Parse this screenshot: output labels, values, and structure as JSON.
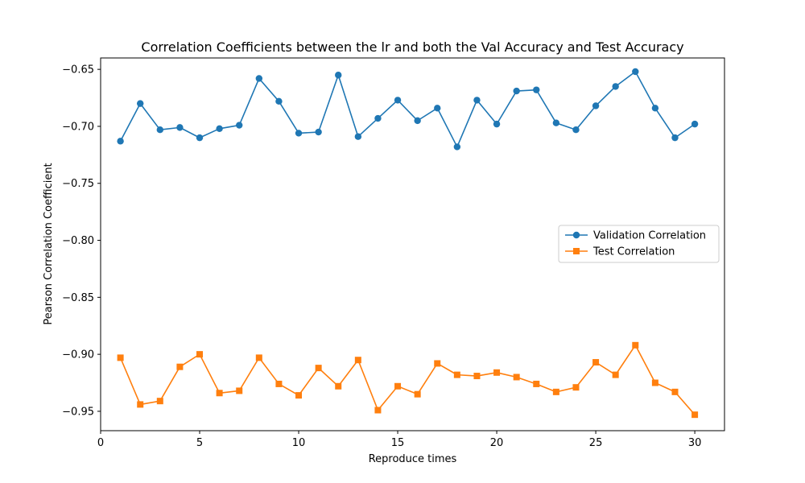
{
  "chart_data": {
    "type": "line",
    "title": "Correlation Coefficients between the lr and both the Val Accuracy and Test Accuracy",
    "xlabel": "Reproduce times",
    "ylabel": "Pearson Correlation Coefficient",
    "xlim": [
      0,
      31.5
    ],
    "ylim": [
      -0.967,
      -0.64
    ],
    "xticks": [
      0,
      5,
      10,
      15,
      20,
      25,
      30
    ],
    "yticks": [
      -0.65,
      -0.7,
      -0.75,
      -0.8,
      -0.85,
      -0.9,
      -0.95
    ],
    "ytick_labels": [
      "−0.65",
      "−0.70",
      "−0.75",
      "−0.80",
      "−0.85",
      "−0.90",
      "−0.95"
    ],
    "grid": false,
    "legend_position": "center-right",
    "x": [
      1,
      2,
      3,
      4,
      5,
      6,
      7,
      8,
      9,
      10,
      11,
      12,
      13,
      14,
      15,
      16,
      17,
      18,
      19,
      20,
      21,
      22,
      23,
      24,
      25,
      26,
      27,
      28,
      29,
      30
    ],
    "series": [
      {
        "name": "Validation Correlation",
        "color": "#1f77b4",
        "marker": "circle",
        "values": [
          -0.713,
          -0.68,
          -0.703,
          -0.701,
          -0.71,
          -0.702,
          -0.699,
          -0.658,
          -0.678,
          -0.706,
          -0.705,
          -0.655,
          -0.709,
          -0.693,
          -0.677,
          -0.695,
          -0.684,
          -0.718,
          -0.677,
          -0.698,
          -0.669,
          -0.668,
          -0.697,
          -0.703,
          -0.682,
          -0.665,
          -0.652,
          -0.684,
          -0.71,
          -0.698
        ]
      },
      {
        "name": "Test Correlation",
        "color": "#ff7f0e",
        "marker": "square",
        "values": [
          -0.903,
          -0.944,
          -0.941,
          -0.911,
          -0.9,
          -0.934,
          -0.932,
          -0.903,
          -0.926,
          -0.936,
          -0.912,
          -0.928,
          -0.905,
          -0.949,
          -0.928,
          -0.935,
          -0.908,
          -0.918,
          -0.919,
          -0.916,
          -0.92,
          -0.926,
          -0.933,
          -0.929,
          -0.907,
          -0.918,
          -0.892,
          -0.925,
          -0.933,
          -0.953
        ]
      }
    ]
  }
}
